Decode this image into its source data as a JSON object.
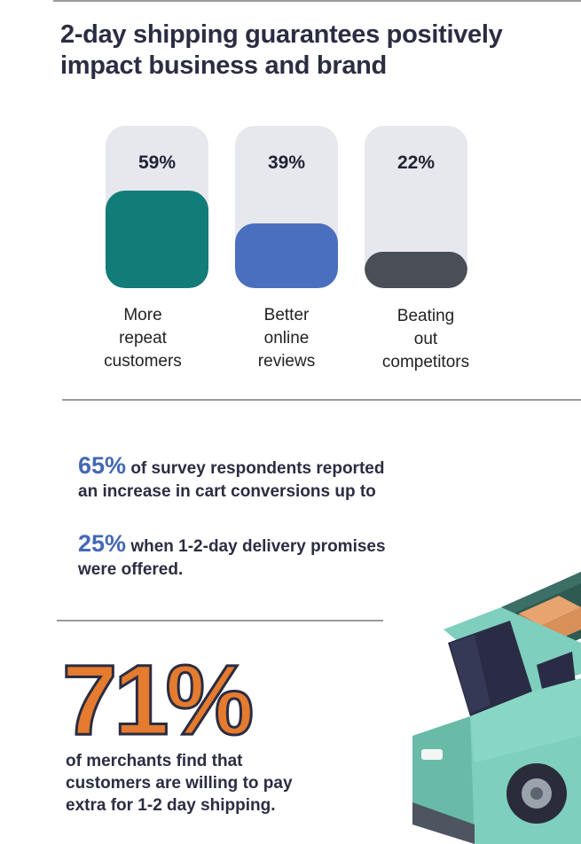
{
  "title": "2-day shipping guarantees positively impact business and brand",
  "colors": {
    "track": "#e7e8ee",
    "teal": "#127c78",
    "blue": "#4a6fbe",
    "charcoal": "#4a4e57",
    "accent_blue": "#4468b5",
    "orange": "#e57b2f",
    "navy": "#2b2d42"
  },
  "bars": [
    {
      "value": "59%",
      "fraction": 0.59,
      "label_lines": [
        "More",
        "repeat",
        "customers"
      ],
      "color": "#127c78"
    },
    {
      "value": "39%",
      "fraction": 0.39,
      "label_lines": [
        "Better",
        "online",
        "reviews"
      ],
      "color": "#4a6fbe"
    },
    {
      "value": "22%",
      "fraction": 0.22,
      "label_lines": [
        "Beating",
        "out",
        "competitors"
      ],
      "color": "#4a4e57"
    }
  ],
  "stat1": {
    "pct": "65%",
    "line1_rest": " of survey respondents reported",
    "line2": "an increase in cart conversions up to"
  },
  "stat2": {
    "pct": "25%",
    "line1_rest": " when 1-2-day delivery promises",
    "line2": "were offered."
  },
  "stat3": {
    "big": "71%",
    "lines": [
      "of merchants find that",
      "customers are willing to pay",
      "extra for 1-2 day shipping."
    ]
  },
  "illustration": {
    "icon": "delivery-truck-icon"
  }
}
